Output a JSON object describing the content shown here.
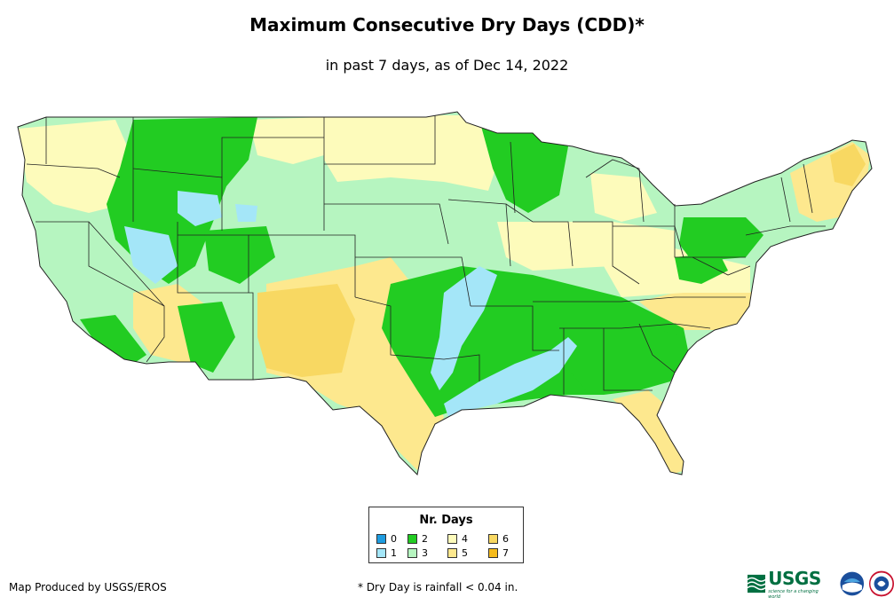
{
  "title": "Maximum Consecutive Dry Days (CDD)*",
  "subtitle": "in past 7 days, as of Dec 14, 2022",
  "legend": {
    "title": "Nr. Days",
    "items": [
      {
        "label": "0",
        "color": "#1e9ce0"
      },
      {
        "label": "1",
        "color": "#a4e6f8"
      },
      {
        "label": "2",
        "color": "#22cc22"
      },
      {
        "label": "3",
        "color": "#b6f5c0"
      },
      {
        "label": "4",
        "color": "#fdfbbb"
      },
      {
        "label": "5",
        "color": "#fde88e"
      },
      {
        "label": "6",
        "color": "#f8d862"
      },
      {
        "label": "7",
        "color": "#f5bb1c"
      }
    ]
  },
  "footer": {
    "producer": "Map Produced by USGS/EROS",
    "note": "* Dry Day is rainfall < 0.04 in."
  },
  "logos": {
    "usgs_text": "USGS",
    "usgs_tagline": "science for a changing world",
    "noaa_icon": "noaa-logo-icon",
    "nws_icon": "nws-logo-icon"
  },
  "colors": {
    "state_border": "#222222",
    "map_background": "#b6f5c0"
  }
}
